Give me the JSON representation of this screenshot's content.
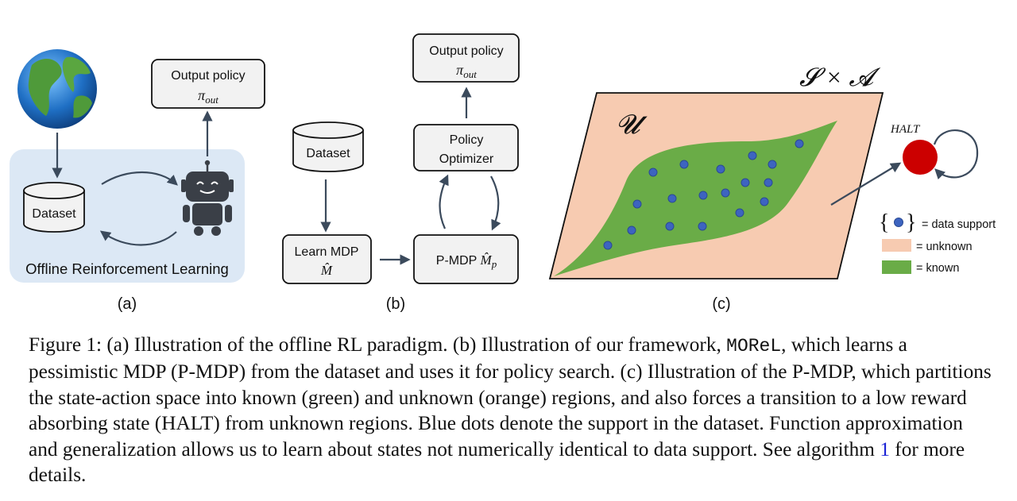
{
  "panel_a": {
    "dataset": "Dataset",
    "output_policy": "Output policy",
    "pi_out": "π",
    "pi_out_sub": "out",
    "offline_rl": "Offline Reinforcement Learning",
    "label": "(a)"
  },
  "panel_b": {
    "dataset": "Dataset",
    "output_policy": "Output policy",
    "pi_out": "π",
    "pi_out_sub": "out",
    "policy_optimizer_line1": "Policy",
    "policy_optimizer_line2": "Optimizer",
    "learn_mdp": "Learn MDP",
    "m_hat": "M̂",
    "pmdp_prefix": "P-MDP ",
    "pmdp_m": "M̂",
    "pmdp_sub": "p",
    "label": "(b)"
  },
  "panel_c": {
    "space_label": "𝓢 × 𝓐",
    "unknown_region": "𝓤",
    "halt": "HALT",
    "legend": {
      "data_support": "= data support",
      "unknown": "= unknown",
      "known": "= known"
    },
    "label": "(c)"
  },
  "colors": {
    "panel_a_bg": "#dce8f5",
    "box_fill": "#f2f2f2",
    "unknown": "#f7cbb1",
    "known": "#6aac47",
    "dot": "#3d64c0",
    "halt": "#cc0000",
    "arrow": "#3b4a5c",
    "ref_link": "#1a22d6"
  },
  "caption": {
    "part1": "Figure 1: (a) Illustration of the offline RL paradigm. (b) Illustration of our framework, ",
    "morel": "MOReL",
    "part2": ", which learns a pessimistic MDP (P-MDP) from the dataset and uses it for policy search. (c) Illustration of the P-MDP, which partitions the state-action space into known (green) and unknown (orange) regions, and also forces a transition to a low reward absorbing state (HALT) from unknown regions. Blue dots denote the support in the dataset. Function approximation and generalization allows us to learn about states not numerically identical to data support. See algorithm ",
    "ref": "1",
    "part3": " for more details."
  }
}
